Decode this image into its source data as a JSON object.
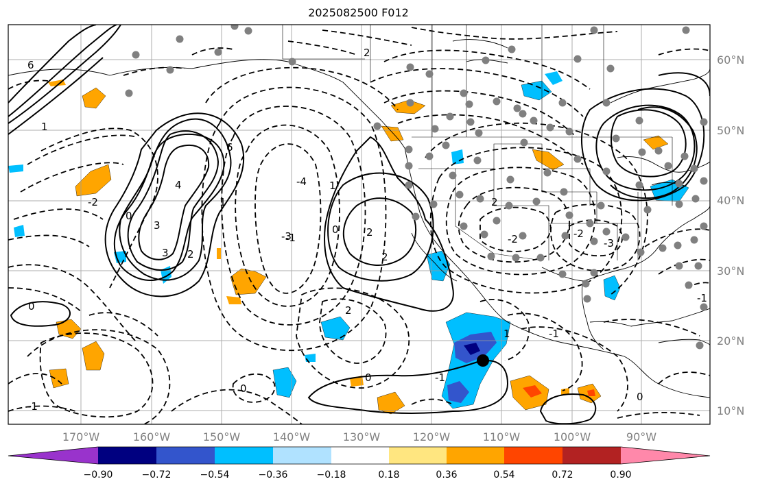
{
  "title": "2025082500 F012",
  "lon_labels": [
    "170°W",
    "160°W",
    "150°W",
    "140°W",
    "130°W",
    "120°W",
    "110°W",
    "100°W",
    "90°W"
  ],
  "lat_labels": [
    "60°N",
    "50°N",
    "40°N",
    "30°N",
    "20°N",
    "10°N"
  ],
  "colorbar": {
    "ticks": [
      "−0.90",
      "−0.72",
      "−0.54",
      "−0.36",
      "−0.18",
      "0.18",
      "0.36",
      "0.54",
      "0.72",
      "0.90"
    ],
    "colors": [
      "#9933cc",
      "#000080",
      "#3355cc",
      "#00bfff",
      "#b0e2ff",
      "#ffffff",
      "#ffe680",
      "#ffa500",
      "#ff4500",
      "#b22222",
      "#ff88aa"
    ]
  },
  "contour_labels": [
    "6",
    "4",
    "3",
    "2",
    "1",
    "0",
    "-1",
    "-2",
    "-3",
    "-4",
    "0",
    "1",
    "2",
    "3",
    "2",
    "1",
    "0",
    "-1",
    "-2",
    "-3",
    "-2",
    "2",
    "0",
    "-1",
    "1",
    "2",
    "0",
    "6",
    "2",
    "-1",
    "0",
    "-1"
  ],
  "station_marker": "black-dot"
}
